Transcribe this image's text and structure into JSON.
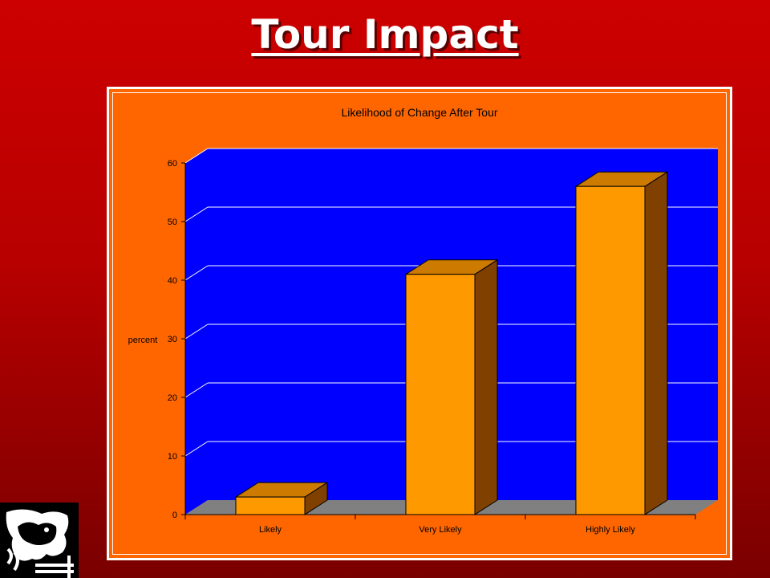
{
  "slide": {
    "title": "Tour Impact"
  },
  "logo": {
    "icon": "cow-logo-icon"
  },
  "colors": {
    "background": "#cc0000",
    "chart_area": "#ff6600",
    "plot_wall": "#0000ff",
    "floor": "#808080",
    "bar_front": "#ff9900",
    "bar_top": "#cc7a00",
    "bar_side": "#804000"
  },
  "chart_data": {
    "type": "bar",
    "title": "Likelihood of Change After Tour",
    "xlabel": "",
    "ylabel": "percent",
    "categories": [
      "Likely",
      "Very Likely",
      "Highly Likely"
    ],
    "values": [
      3,
      41,
      56
    ],
    "ylim": [
      0,
      60
    ],
    "yticks": [
      "0",
      "10",
      "20",
      "30",
      "40",
      "50",
      "60"
    ],
    "grid": true,
    "legend": "none",
    "style": "3d"
  }
}
